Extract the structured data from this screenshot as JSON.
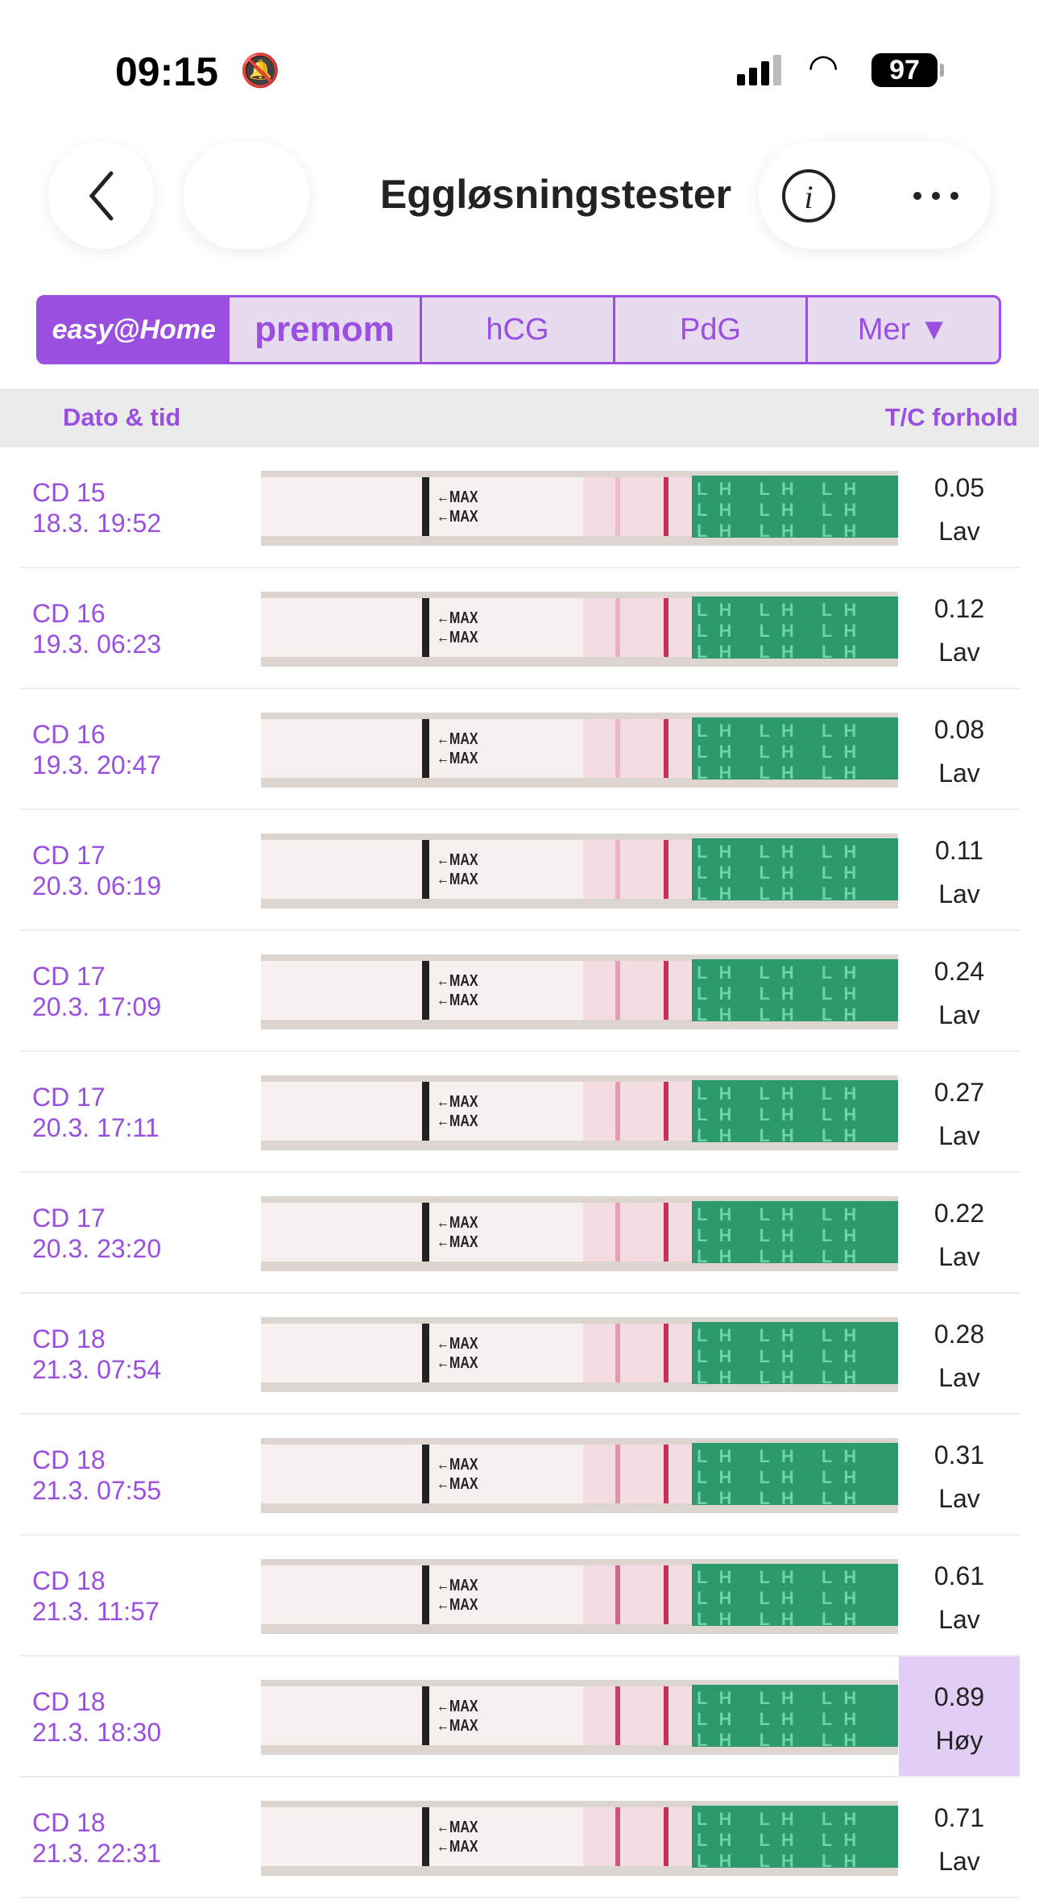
{
  "status": {
    "time": "09:15",
    "battery": "97",
    "icons": [
      "bell-slash-icon",
      "cellular-signal-icon",
      "wifi-icon",
      "battery-icon"
    ]
  },
  "header": {
    "title": "Eggløsningstester",
    "icons": [
      "back-icon",
      "info-icon",
      "more-icon"
    ]
  },
  "tabs": {
    "logo": "easy@Home",
    "brand": "premom",
    "items": [
      "hCG",
      "PdG",
      "Mer ▼"
    ]
  },
  "columns": {
    "date": "Dato & tid",
    "ratio": "T/C forhold"
  },
  "strip_labels": {
    "max": "←MAX",
    "lh": "LH"
  },
  "colors": {
    "accent": "#9a4fe0",
    "highlight": "#e2cdf5"
  },
  "rows": [
    {
      "cd": "CD 15",
      "date": "18.3. 19:52",
      "ratio": "0.05",
      "level": "Lav",
      "ratio_value": 0.05
    },
    {
      "cd": "CD 16",
      "date": "19.3. 06:23",
      "ratio": "0.12",
      "level": "Lav",
      "ratio_value": 0.12
    },
    {
      "cd": "CD 16",
      "date": "19.3. 20:47",
      "ratio": "0.08",
      "level": "Lav",
      "ratio_value": 0.08
    },
    {
      "cd": "CD 17",
      "date": "20.3. 06:19",
      "ratio": "0.11",
      "level": "Lav",
      "ratio_value": 0.11
    },
    {
      "cd": "CD 17",
      "date": "20.3. 17:09",
      "ratio": "0.24",
      "level": "Lav",
      "ratio_value": 0.24
    },
    {
      "cd": "CD 17",
      "date": "20.3. 17:11",
      "ratio": "0.27",
      "level": "Lav",
      "ratio_value": 0.27
    },
    {
      "cd": "CD 17",
      "date": "20.3. 23:20",
      "ratio": "0.22",
      "level": "Lav",
      "ratio_value": 0.22
    },
    {
      "cd": "CD 18",
      "date": "21.3. 07:54",
      "ratio": "0.28",
      "level": "Lav",
      "ratio_value": 0.28
    },
    {
      "cd": "CD 18",
      "date": "21.3. 07:55",
      "ratio": "0.31",
      "level": "Lav",
      "ratio_value": 0.31
    },
    {
      "cd": "CD 18",
      "date": "21.3. 11:57",
      "ratio": "0.61",
      "level": "Lav",
      "ratio_value": 0.61
    },
    {
      "cd": "CD 18",
      "date": "21.3. 18:30",
      "ratio": "0.89",
      "level": "Høy",
      "ratio_value": 0.89,
      "highlight": true
    },
    {
      "cd": "CD 18",
      "date": "21.3. 22:31",
      "ratio": "0.71",
      "level": "Lav",
      "ratio_value": 0.71
    }
  ]
}
